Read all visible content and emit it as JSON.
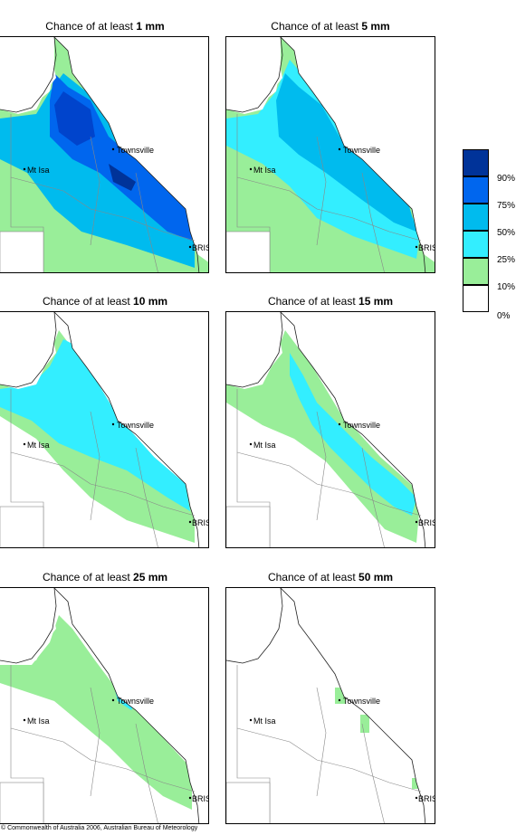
{
  "panels": [
    {
      "prefix": "Chance of at least ",
      "amount": "1 mm"
    },
    {
      "prefix": "Chance of at least ",
      "amount": "5 mm"
    },
    {
      "prefix": "Chance of at least ",
      "amount": "10 mm"
    },
    {
      "prefix": "Chance of at least ",
      "amount": "15 mm"
    },
    {
      "prefix": "Chance of at least ",
      "amount": "25 mm"
    },
    {
      "prefix": "Chance of at least ",
      "amount": "50 mm"
    }
  ],
  "places": {
    "townsville": "Townsville",
    "mt_isa": "Mt Isa",
    "bris": "BRIS"
  },
  "legend": {
    "labels": [
      "90%",
      "75%",
      "50%",
      "25%",
      "10%",
      "0%"
    ],
    "colors": [
      "#003399",
      "#0066ee",
      "#00bbee",
      "#33eeff",
      "#99ee99",
      "#ffffff"
    ]
  },
  "footer": "© Commonwealth of Australia 2006, Australian Bureau of Meteorology"
}
